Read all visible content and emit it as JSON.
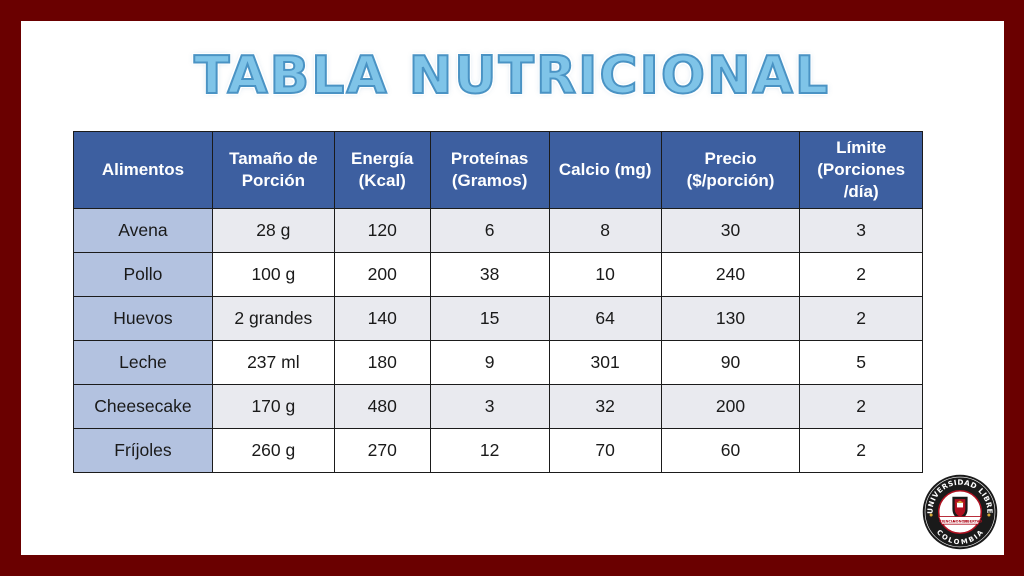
{
  "title": "Tabla Nutricional",
  "table": {
    "headers": [
      "Alimentos",
      "Tamaño de Porción",
      "Energía (Kcal)",
      "Proteínas (Gramos)",
      "Calcio (mg)",
      "Precio ($/porción)",
      "Límite (Porciones /día)"
    ],
    "rows": [
      [
        "Avena",
        "28 g",
        "120",
        "6",
        "8",
        "30",
        "3"
      ],
      [
        "Pollo",
        "100 g",
        "200",
        "38",
        "10",
        "240",
        "2"
      ],
      [
        "Huevos",
        "2 grandes",
        "140",
        "15",
        "64",
        "130",
        "2"
      ],
      [
        "Leche",
        "237 ml",
        "180",
        "9",
        "301",
        "90",
        "5"
      ],
      [
        "Cheesecake",
        "170 g",
        "480",
        "3",
        "32",
        "200",
        "2"
      ],
      [
        "Fríjoles",
        "260 g",
        "270",
        "12",
        "70",
        "60",
        "2"
      ]
    ]
  },
  "logo": {
    "top_text": "UNIVERSIDAD LIBRE",
    "bottom_text": "COLOMBIA",
    "ribbon_left": "CIENCIA",
    "ribbon_center": "HONOR",
    "ribbon_right": "LIBERTAD",
    "colors": {
      "ring": "#1a1a1a",
      "accent": "#b01020",
      "gold": "#d4a838"
    }
  },
  "colors": {
    "frame": "#6a0000",
    "header_bg": "#3d5fa0",
    "food_cell_bg": "#b3c2e0",
    "title": "#7fc4e8"
  }
}
